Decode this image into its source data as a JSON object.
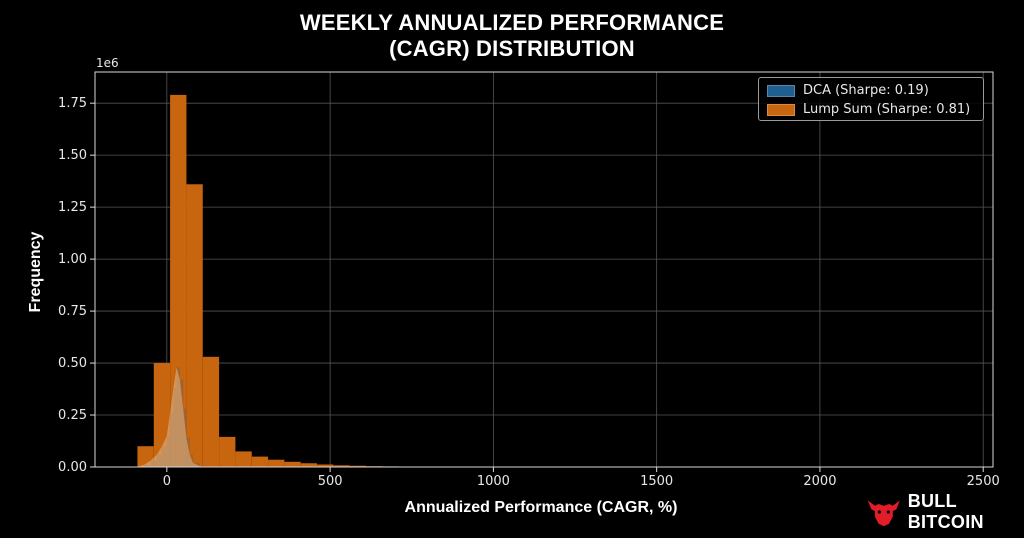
{
  "chart_data": {
    "type": "bar",
    "title_line1": "WEEKLY ANNUALIZED PERFORMANCE",
    "title_line2": "(CAGR) DISTRIBUTION",
    "xlabel": "Annualized Performance (CAGR, %)",
    "ylabel": "Frequency",
    "y_scale_label": "1e6",
    "xlim": [
      -220,
      2530
    ],
    "ylim": [
      0,
      1.9
    ],
    "x_ticks": [
      0,
      500,
      1000,
      1500,
      2000,
      2500
    ],
    "y_ticks": [
      0.0,
      0.25,
      0.5,
      0.75,
      1.0,
      1.25,
      1.5,
      1.75
    ],
    "y_tick_labels": [
      "0.00",
      "0.25",
      "0.50",
      "0.75",
      "1.00",
      "1.25",
      "1.50",
      "1.75"
    ],
    "grid": true,
    "legend_position": "top-right",
    "series": [
      {
        "name": "DCA (Sharpe: 0.19)",
        "color": "#1f5f8f",
        "kind": "histogram",
        "x": [
          -90,
          -70,
          -50,
          -30,
          -15,
          0,
          10,
          20,
          30,
          40,
          50,
          60,
          70,
          80,
          100,
          120
        ],
        "values": [
          0.0,
          0.01,
          0.03,
          0.06,
          0.1,
          0.15,
          0.26,
          0.38,
          0.48,
          0.42,
          0.28,
          0.14,
          0.06,
          0.02,
          0.005,
          0.0
        ]
      },
      {
        "name": "Lump Sum (Sharpe: 0.81)",
        "color": "#c8650f",
        "kind": "histogram",
        "bin_edges": [
          -90,
          -40,
          10,
          60,
          110,
          160,
          210,
          260,
          310,
          360,
          410,
          460,
          510,
          560,
          610,
          660,
          710,
          760,
          810
        ],
        "values": [
          0.1,
          0.5,
          1.79,
          1.36,
          0.53,
          0.145,
          0.075,
          0.05,
          0.035,
          0.025,
          0.018,
          0.012,
          0.008,
          0.006,
          0.004,
          0.003,
          0.002,
          0.001
        ]
      }
    ]
  },
  "brand": {
    "name": "BULL BITCOIN",
    "logo_icon": "bull-head-icon",
    "logo_color": "#e11d2a"
  }
}
